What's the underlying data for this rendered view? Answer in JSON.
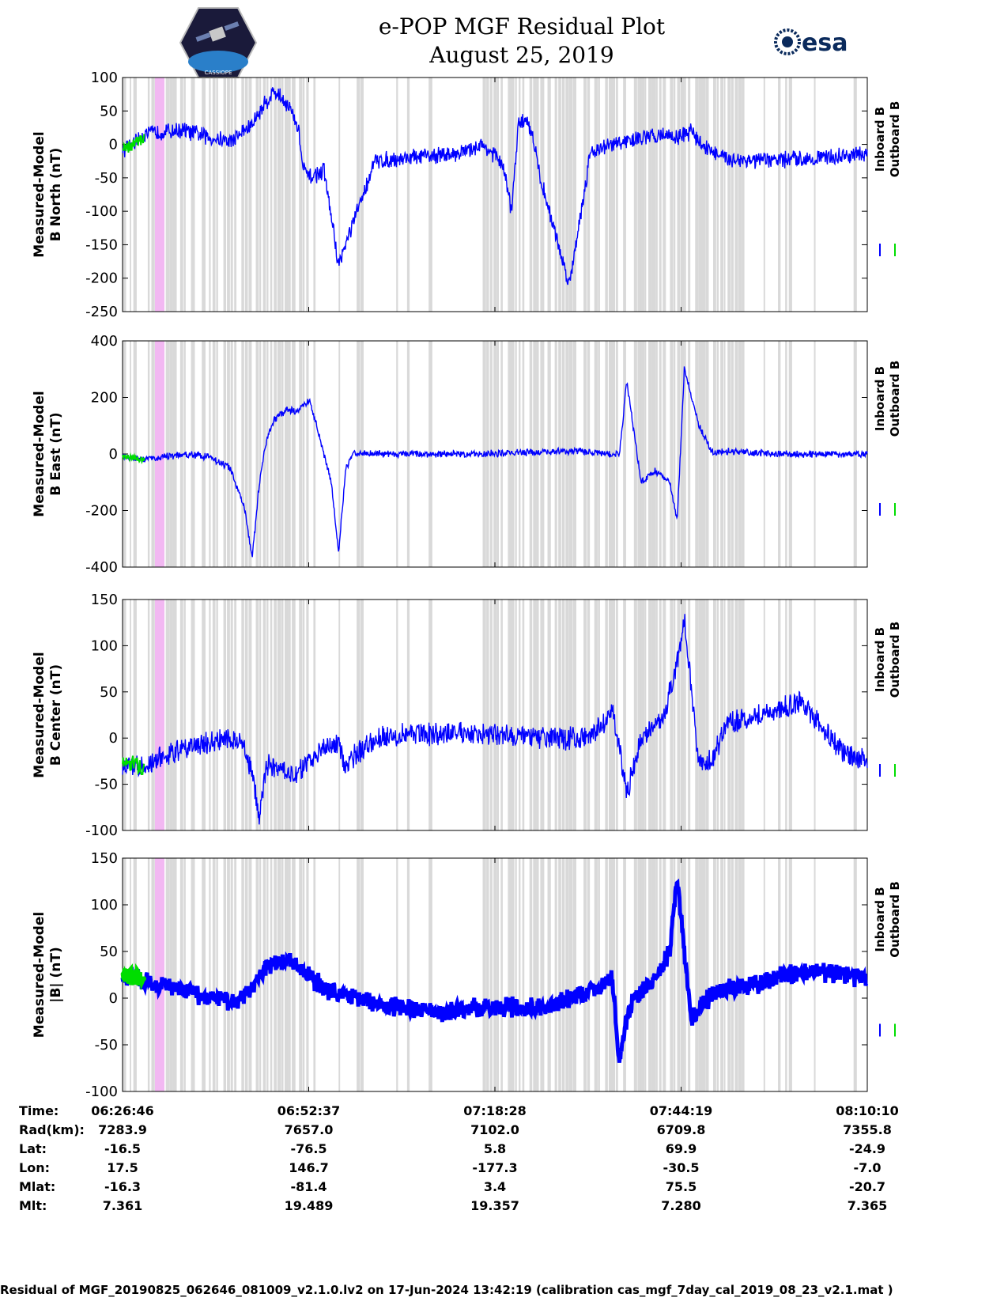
{
  "header": {
    "title_line1": "e-POP MGF Residual Plot",
    "title_line2": "August 25, 2019",
    "logo_left_text": "CASSIOPE",
    "logo_right_text": "esa"
  },
  "colors": {
    "inboard": "#0000ff",
    "outboard": "#00dd00",
    "gaps": "#d9d9d9",
    "highlight": "#f2b8f2"
  },
  "legend": {
    "inboard": "Inboard B",
    "outboard": "Outboard B"
  },
  "chart_data": [
    {
      "type": "line",
      "ylabel_line1": "Measured-Model",
      "ylabel_line2": "B North (nT)",
      "ylim": [
        -250,
        100
      ],
      "yticks": [
        "100",
        "50",
        "0",
        "-50",
        "-100",
        "-150",
        "-200",
        "-250"
      ],
      "x_minutes": [
        0,
        3,
        6,
        9,
        12,
        15,
        18,
        20,
        21,
        23,
        24.5,
        25,
        26,
        28,
        30,
        35,
        40,
        45,
        48,
        49.5,
        50.5,
        51,
        52,
        53,
        54,
        55,
        56,
        57,
        58,
        62,
        65,
        70,
        75,
        77,
        79,
        80,
        83,
        88,
        96,
        103.4
      ],
      "series": [
        {
          "name": "Inboard B",
          "values": [
            -10,
            15,
            20,
            20,
            10,
            5,
            30,
            65,
            80,
            60,
            20,
            -35,
            -50,
            -40,
            -180,
            -25,
            -20,
            -15,
            -10,
            0,
            -5,
            -10,
            -20,
            -40,
            -100,
            30,
            40,
            10,
            -50,
            -210,
            -10,
            5,
            15,
            10,
            20,
            5,
            -20,
            -25,
            -20,
            -15
          ]
        },
        {
          "name": "Outboard B",
          "x_range": [
            0,
            3
          ],
          "values": [
            -10,
            0,
            10
          ]
        }
      ]
    },
    {
      "type": "line",
      "ylabel_line1": "Measured-Model",
      "ylabel_line2": "B East (nT)",
      "ylim": [
        -400,
        400
      ],
      "yticks": [
        "400",
        "200",
        "0",
        "-200",
        "-400"
      ],
      "x_minutes": [
        0,
        3,
        6,
        9,
        12,
        15,
        17,
        18,
        19,
        20,
        21,
        23,
        24,
        26,
        29,
        30,
        31,
        32,
        34,
        36,
        40,
        50,
        55,
        63,
        68,
        69,
        70,
        72,
        74,
        76,
        77,
        78,
        80,
        82,
        84,
        90,
        103.4
      ],
      "series": [
        {
          "name": "Inboard B",
          "values": [
            -10,
            -20,
            -10,
            0,
            -10,
            -50,
            -200,
            -370,
            -100,
            50,
            120,
            160,
            150,
            190,
            -100,
            -350,
            -50,
            0,
            5,
            0,
            0,
            0,
            5,
            10,
            0,
            0,
            260,
            -100,
            -60,
            -100,
            -240,
            300,
            100,
            0,
            10,
            0,
            0
          ]
        },
        {
          "name": "Outboard B",
          "x_range": [
            0,
            3
          ],
          "values": [
            -10,
            -15,
            -20
          ]
        }
      ]
    },
    {
      "type": "line",
      "ylabel_line1": "Measured-Model",
      "ylabel_line2": "B Center (nT)",
      "ylim": [
        -100,
        150
      ],
      "yticks": [
        "150",
        "100",
        "50",
        "0",
        "-50",
        "-100"
      ],
      "x_minutes": [
        0,
        3,
        6,
        9,
        12,
        15,
        17,
        18,
        19,
        20,
        24,
        28,
        30,
        31,
        32,
        35,
        40,
        50,
        58,
        65,
        68,
        70,
        72,
        75,
        77,
        78,
        80,
        82,
        84,
        88,
        91,
        94,
        96,
        100,
        103.4
      ],
      "series": [
        {
          "name": "Inboard B",
          "values": [
            -30,
            -30,
            -20,
            -10,
            -5,
            0,
            -10,
            -40,
            -85,
            -30,
            -40,
            -10,
            -5,
            -35,
            -20,
            0,
            5,
            5,
            0,
            0,
            30,
            -60,
            0,
            20,
            80,
            130,
            -30,
            -20,
            15,
            25,
            30,
            40,
            20,
            -15,
            -25
          ]
        },
        {
          "name": "Outboard B",
          "x_range": [
            0,
            3
          ],
          "values": [
            -30,
            -28,
            -32
          ]
        }
      ]
    },
    {
      "type": "line",
      "ylabel_line1": "Measured-Model",
      "ylabel_line2": "|B| (nT)",
      "ylim": [
        -100,
        150
      ],
      "yticks": [
        "150",
        "100",
        "50",
        "0",
        "-50",
        "-100"
      ],
      "x_minutes": [
        0,
        5,
        10,
        15,
        17,
        20,
        23,
        25,
        28,
        30,
        32,
        35,
        40,
        45,
        50,
        55,
        60,
        68,
        69,
        70,
        71,
        72,
        74,
        76,
        77,
        78,
        79,
        80,
        82,
        84,
        88,
        92,
        96,
        100,
        103.4
      ],
      "series": [
        {
          "name": "Inboard B",
          "values": [
            25,
            15,
            5,
            -5,
            0,
            35,
            40,
            30,
            10,
            5,
            3,
            -5,
            -12,
            -15,
            -10,
            -10,
            -8,
            20,
            -70,
            -20,
            0,
            5,
            20,
            50,
            130,
            50,
            -25,
            -10,
            5,
            10,
            15,
            25,
            28,
            25,
            20
          ]
        },
        {
          "name": "Outboard B",
          "x_range": [
            0,
            3
          ],
          "values": [
            25,
            22,
            20
          ]
        }
      ]
    }
  ],
  "xaxis": {
    "row_labels": [
      "Time:",
      "Rad(km):",
      "Lat:",
      "Lon:",
      "Mlat:",
      "Mlt:"
    ],
    "columns": [
      {
        "time": "06:26:46",
        "rad": "7283.9",
        "lat": "-16.5",
        "lon": "17.5",
        "mlat": "-16.3",
        "mlt": "7.361"
      },
      {
        "time": "06:52:37",
        "rad": "7657.0",
        "lat": "-76.5",
        "lon": "146.7",
        "mlat": "-81.4",
        "mlt": "19.489"
      },
      {
        "time": "07:18:28",
        "rad": "7102.0",
        "lat": "5.8",
        "lon": "-177.3",
        "mlat": "3.4",
        "mlt": "19.357"
      },
      {
        "time": "07:44:19",
        "rad": "6709.8",
        "lat": "69.9",
        "lon": "-30.5",
        "mlat": "75.5",
        "mlt": "7.280"
      },
      {
        "time": "08:10:10",
        "rad": "7355.8",
        "lat": "-24.9",
        "lon": "-7.0",
        "mlat": "-20.7",
        "mlt": "7.365"
      }
    ]
  },
  "footer": "Residual of MGF_20190825_062646_081009_v2.1.0.lv2 on 17-Jun-2024 13:42:19 (calibration cas_mgf_7day_cal_2019_08_23_v2.1.mat )"
}
